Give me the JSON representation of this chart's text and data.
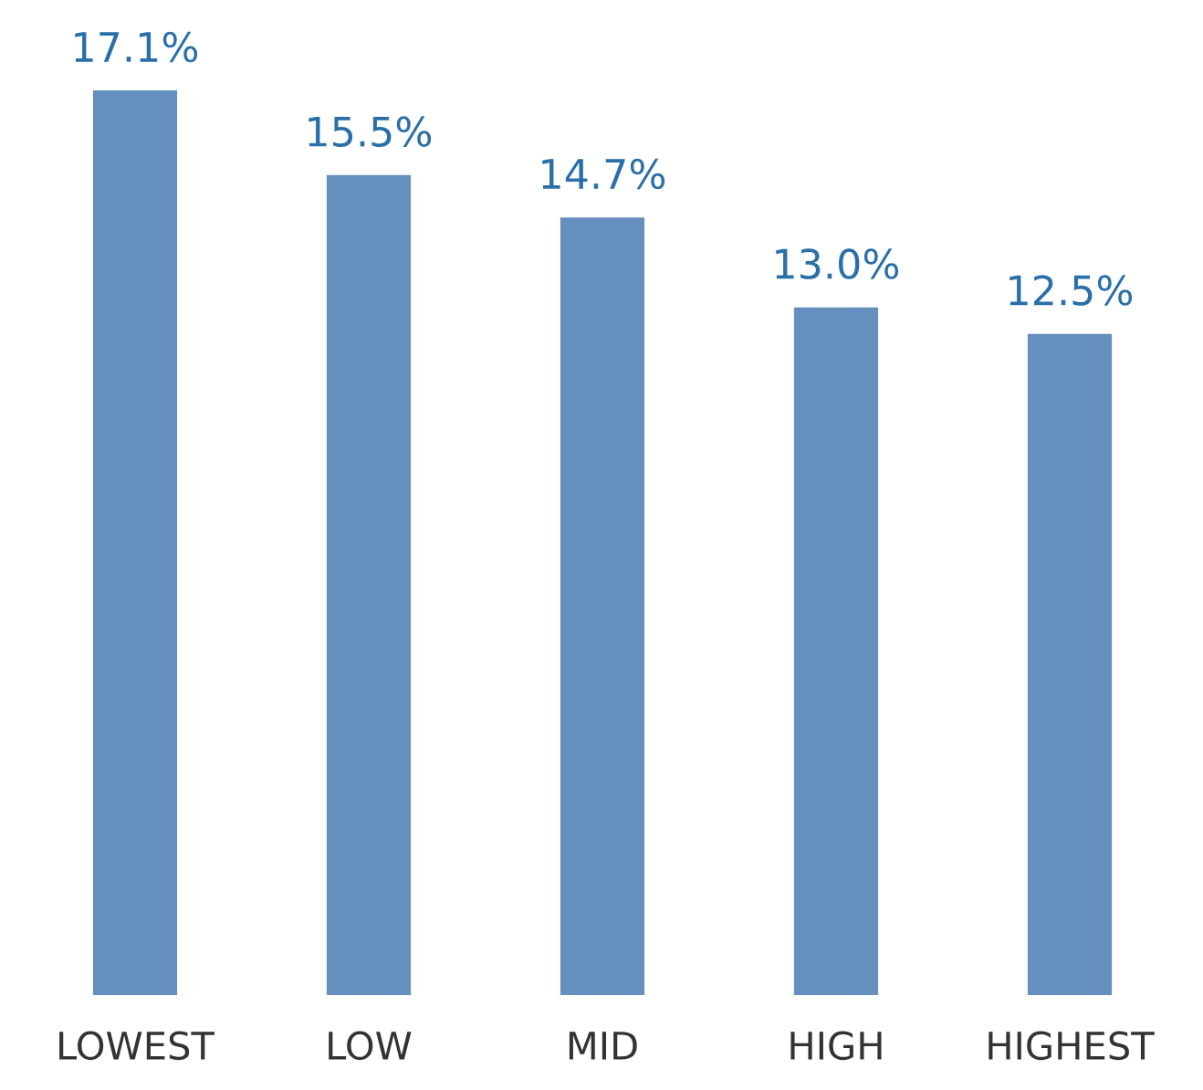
{
  "chart_data": {
    "type": "bar",
    "categories": [
      "LOWEST",
      "LOW",
      "MID",
      "HIGH",
      "HIGHEST"
    ],
    "values": [
      17.1,
      15.5,
      14.7,
      13.0,
      12.5
    ],
    "color": "#648fbf",
    "value_labels": [
      "17.1%",
      "15.5%",
      "14.7%",
      "13.0%",
      "12.5%"
    ],
    "tick_labels": "x",
    "grid": false,
    "legend": false
  }
}
